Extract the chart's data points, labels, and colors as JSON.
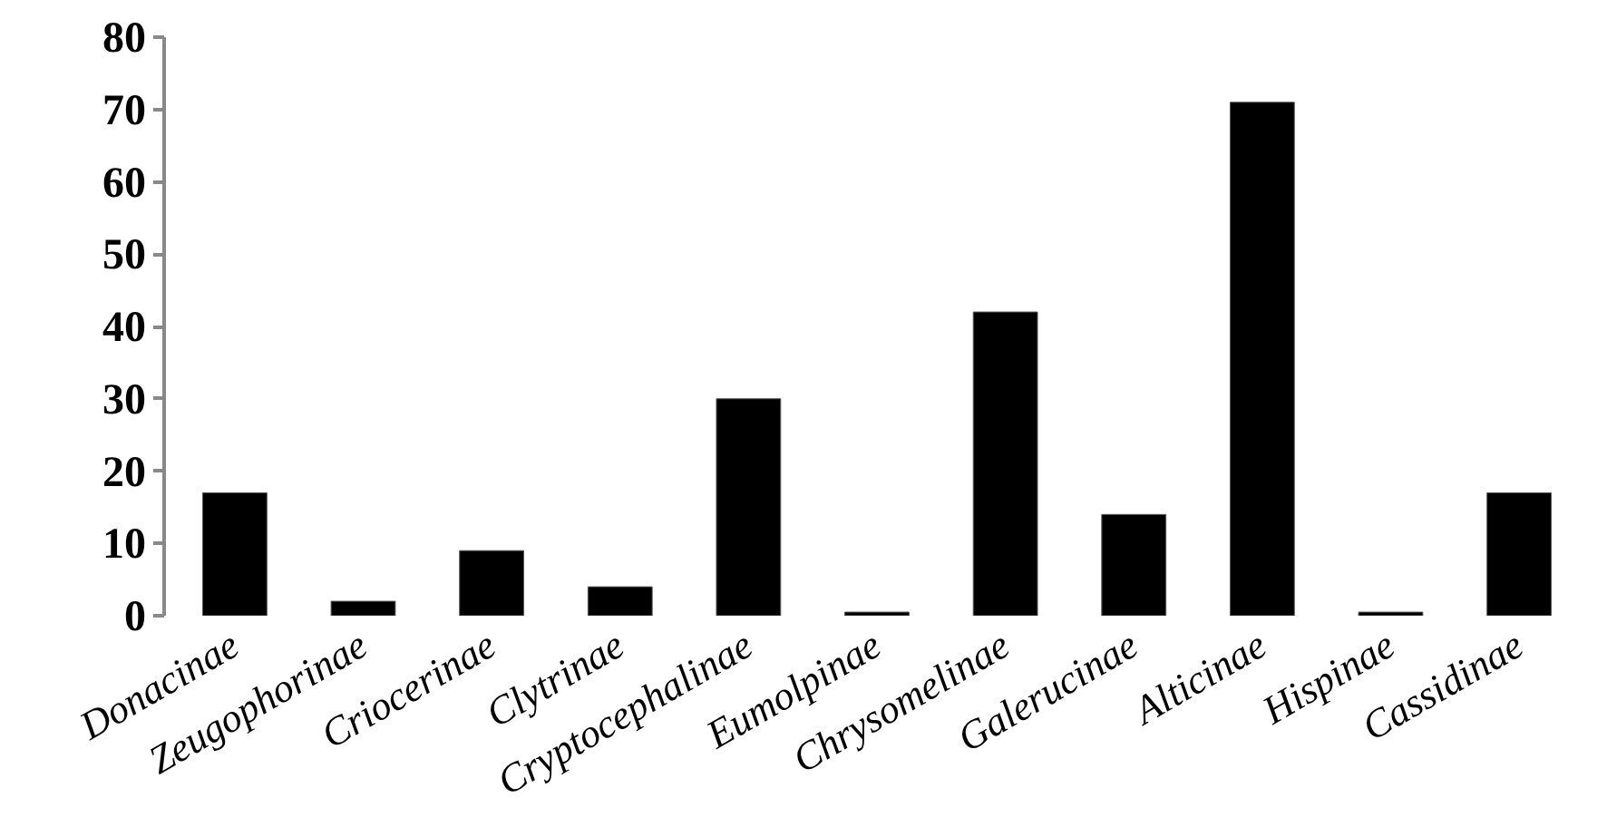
{
  "chart_data": {
    "type": "bar",
    "categories": [
      "Donacinae",
      "Zeugophorinae",
      "Criocerinae",
      "Clytrinae",
      "Cryptocephalinae",
      "Eumolpinae",
      "Chrysomelinae",
      "Galerucinae",
      "Alticinae",
      "Hispinae",
      "Cassidinae"
    ],
    "values": [
      17,
      2,
      9,
      4,
      30,
      0.5,
      42,
      14,
      71,
      0.5,
      17
    ],
    "color": "#000000",
    "ylim": [
      0,
      80
    ],
    "yticks": [
      0,
      10,
      20,
      30,
      40,
      50,
      60,
      70,
      80
    ],
    "grid": false
  }
}
